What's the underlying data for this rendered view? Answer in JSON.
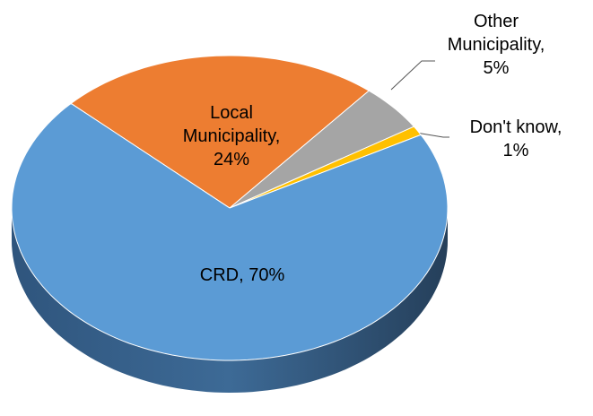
{
  "chart_data": {
    "type": "pie",
    "values": [
      24,
      5,
      1,
      70
    ],
    "value_labels": [
      "Local\nMunicipality,\n24%",
      "Other\nMunicipality,\n5%",
      "Don't know,\n1%",
      "CRD, 70%"
    ],
    "colors": [
      "#ed7d31",
      "#a5a5a5",
      "#ffc000",
      "#5b9bd5"
    ]
  }
}
